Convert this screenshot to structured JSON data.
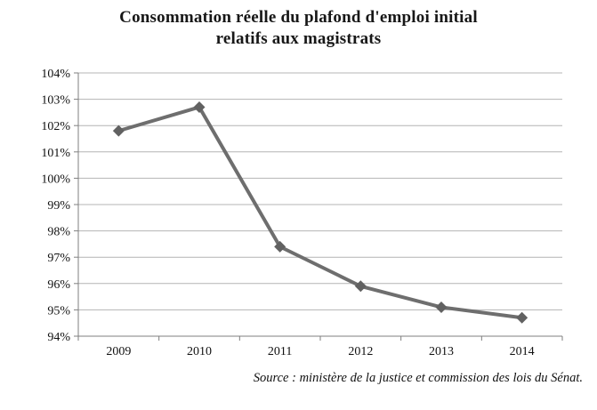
{
  "chart_data": {
    "type": "line",
    "title": "Consommation réelle du plafond d'emploi initial relatifs aux magistrats",
    "title_lines": [
      "Consommation réelle du plafond d'emploi initial",
      "relatifs aux magistrats"
    ],
    "categories": [
      "2009",
      "2010",
      "2011",
      "2012",
      "2013",
      "2014"
    ],
    "series": [
      {
        "name": "Consommation réelle du plafond d'emploi",
        "values": [
          101.8,
          102.7,
          97.4,
          95.9,
          95.1,
          94.7
        ]
      }
    ],
    "xlabel": "",
    "ylabel": "",
    "ylim": [
      94,
      104
    ],
    "y_tick_step": 1,
    "y_tick_suffix": "%",
    "grid": true,
    "legend_position": "none",
    "marker": "diamond",
    "colors": {
      "line": "#6e6e6e",
      "marker": "#616161",
      "gridline": "#b4b4b4",
      "axis": "#7f7f7f",
      "text": "#111111"
    },
    "source": "Source : ministère de la justice et commission des lois du Sénat."
  }
}
